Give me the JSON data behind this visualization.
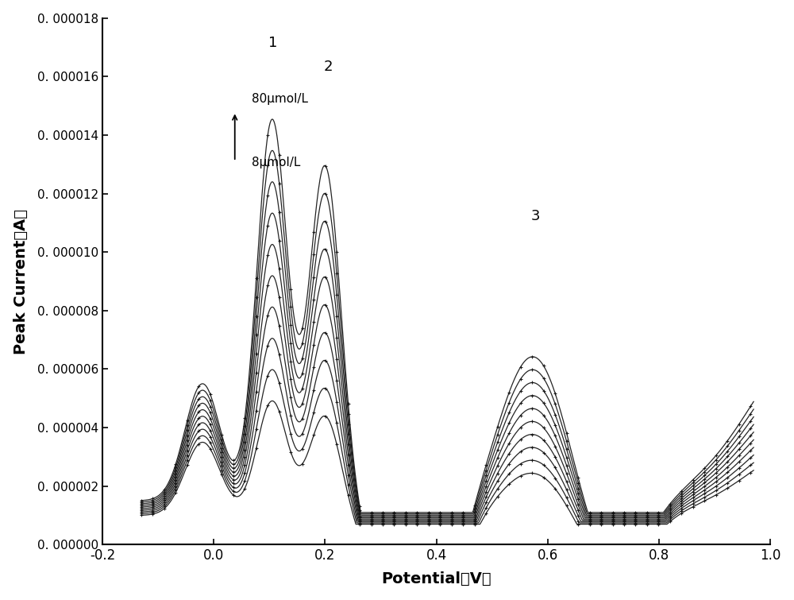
{
  "xlabel": "Potential（V）",
  "ylabel": "Peak Current（A）",
  "xlim": [
    -0.2,
    1.0
  ],
  "ylim": [
    0,
    1.8e-05
  ],
  "n_curves": 10,
  "annotation_top": "80μmol/L",
  "annotation_bottom": "8μmol/L",
  "label1": "1",
  "label2": "2",
  "label3": "3",
  "bg_color": "#ffffff",
  "curve_color": "#111111",
  "ytick_labels": [
    "0.000000",
    "0.000002",
    "0.000004",
    "0.000006",
    "0.000008",
    "0.000010",
    "0.000012",
    "0.000014",
    "0.000016",
    "0.000018"
  ],
  "xtick_vals": [
    -0.2,
    0.0,
    0.2,
    0.4,
    0.6,
    0.8,
    1.0
  ],
  "xtick_labels": [
    "-0.2",
    "0.0",
    "0.2",
    "0.4",
    "0.6",
    "0.8",
    "1.0"
  ]
}
